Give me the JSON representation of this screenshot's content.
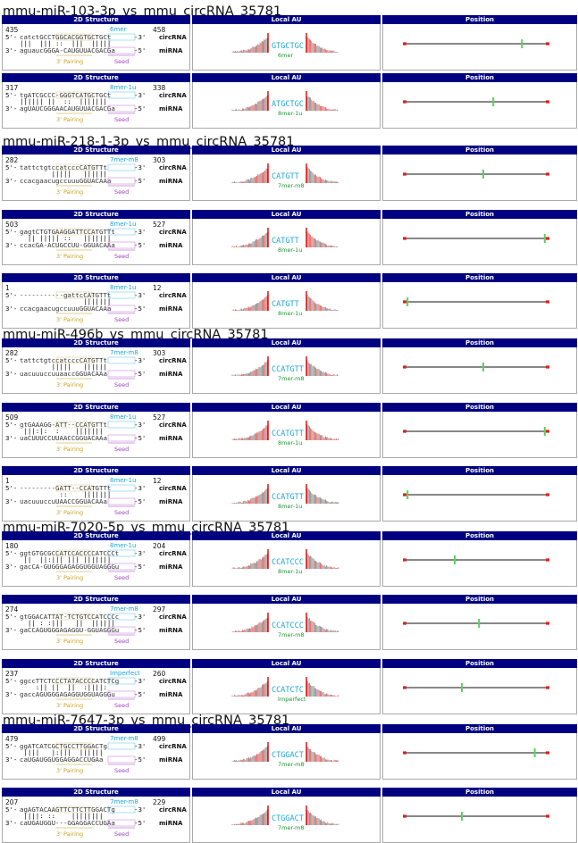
{
  "headers": {
    "structure": "2D Structure",
    "local_au": "Local AU",
    "position": "Position"
  },
  "labels": {
    "circ": "circRNA",
    "mirna": "miRNA",
    "pairing": "3' Pairing",
    "seed": "Seed",
    "five_prefix": "5'-",
    "three_prefix": "3'-",
    "three_suffix": "-3'",
    "five_suffix": "-5'"
  },
  "groups": [
    {
      "title": "mmu-miR-103-3p_vs_mmu_circRNA_35781",
      "sites": [
        {
          "start": "435",
          "end": "458",
          "type": "6mer",
          "circ": "catctGCCTGGCACGGTGCTGCt",
          "mirna": "aguaucGGGA-CAUGUUACGACGa",
          "bars": "|||  ||| ::  |||  |||||",
          "au_seq": "GTGCTGC",
          "green_pos": 0.82
        },
        {
          "start": "317",
          "end": "338",
          "type": "8mer-1u",
          "circ": "tgATCGCCC-GGGTCATGCTGCt",
          "mirna": "agUAUCGGGAACAUGUUACGACGa",
          "bars": "|||||| ||  ::  ||||||| ",
          "au_seq": "ATGCTGC",
          "green_pos": 0.62
        }
      ]
    },
    {
      "title": "mmu-miR-218-1-3p_vs_mmu_circRNA_35781",
      "sites": [
        {
          "start": "282",
          "end": "303",
          "type": "7mer-m8",
          "circ": "tattctgtccatcccCATGTTt",
          "mirna": "ccacgaacugccuuuGGUACAAa",
          "bars": "        |||||   ||||||  ",
          "au_seq": "CATGTT",
          "green_pos": 0.55
        },
        {
          "start": "503",
          "end": "527",
          "type": "8mer-1u",
          "circ": "gagtCTGTGAAGGATTCCATGTTt",
          "mirna": "ccacGA-ACUGCCUU-GGUACAAa",
          "bars": "  || ||||| ::   |||||||",
          "au_seq": "CATGTT",
          "green_pos": 0.98
        },
        {
          "start": "1",
          "end": "12",
          "type": "8mer-1u",
          "circ": "-----------gattcCATGTTt",
          "mirna": "ccacgaacugccuuuGGUACAAa",
          "bars": "                |||||||",
          "au_seq": "CATGTT",
          "green_pos": 0.02
        }
      ]
    },
    {
      "title": "mmu-miR-496b_vs_mmu_circRNA_35781",
      "sites": [
        {
          "start": "282",
          "end": "303",
          "type": "7mer-m8",
          "circ": "tattctgtccatcccCATGTTt",
          "mirna": "uacuuuccuuaaccGGUACAAa",
          "bars": "        |||||   ||||||  ",
          "au_seq": "CCATGTT",
          "green_pos": 0.55
        },
        {
          "start": "509",
          "end": "527",
          "type": "8mer-1u",
          "circ": "gtGAAAGG-ATT--CCATGTTt",
          "mirna": "uaCUUUCCUUAACCGGUACAAa",
          "bars": " |||:|:  :    |||||||",
          "au_seq": "CCATGTT",
          "green_pos": 0.98
        },
        {
          "start": "1",
          "end": "12",
          "type": "8mer-1u",
          "circ": "---------GATT--CCATGTTt",
          "mirna": "uacuuuccuUAACCGGUACAAa",
          "bars": "          ::    |||||||",
          "au_seq": "CCATGTT",
          "green_pos": 0.02
        }
      ]
    },
    {
      "title": "mmu-miR-7020-5p_vs_mmu_circRNA_35781",
      "sites": [
        {
          "start": "180",
          "end": "204",
          "type": "8mer-1u",
          "circ": "ggtGTGCGCCATCCACCCCATCCCt",
          "mirna": "gacCA-GUGGGAGAGGUGGUAGGGu",
          "bars": " ||  ||:||| ||| |||||||",
          "au_seq": "CCATCCC",
          "green_pos": 0.35
        },
        {
          "start": "274",
          "end": "297",
          "type": "7mer-m8",
          "circ": "gtGGACATTAT-TCTGTCCATCCCc",
          "mirna": "gaCCAGUGGGAGAGGU-GGUAGGGu",
          "bars": "  || : :|||   ||  ||||||",
          "au_seq": "CCATCCC",
          "green_pos": 0.52
        },
        {
          "start": "237",
          "end": "260",
          "type": "Imperfect",
          "circ": "ggccTTCTCCCTATACCCCATCTCg",
          "mirna": "gaccAGUGGGAGAGGUGGUAGGGu",
          "bars": "    :|| ||  ||  :||||: ",
          "au_seq": "CCATCTC",
          "green_pos": 0.4
        }
      ]
    },
    {
      "title": "mmu-miR-7647-3p_vs_mmu_circRNA_35781",
      "sites": [
        {
          "start": "479",
          "end": "499",
          "type": "7mer-m8",
          "circ": "ggATCATCGCTGCCTTGGACTg",
          "mirna": "caUGAUGGUGGAGGACCUGAa",
          "bars": " ||||   |:|||  ||||||",
          "au_seq": "CTGGACT",
          "green_pos": 0.91
        },
        {
          "start": "207",
          "end": "229",
          "type": "7mer-m8",
          "circ": "agAGTACAAGTTCTTCTTGGACTg",
          "mirna": "caUGAUGGU---GGAGGACCUGAa",
          "bars": " ||||: ::    ||||||||",
          "au_seq": "CTGGACT",
          "green_pos": 0.4
        }
      ]
    }
  ]
}
